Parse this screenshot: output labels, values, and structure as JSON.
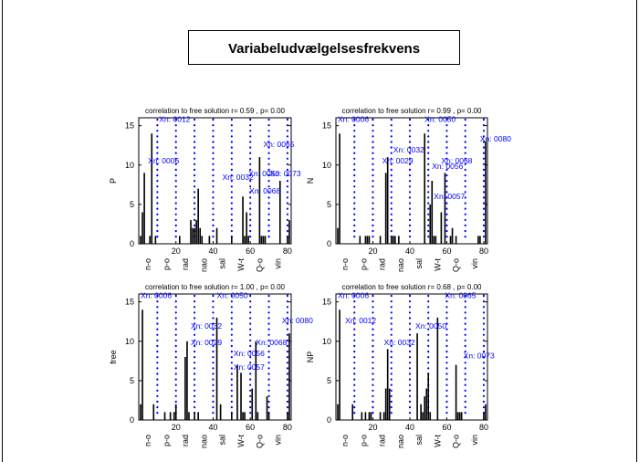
{
  "figure": {
    "title": "Variabeludvælgelsesfrekvens"
  },
  "chart_data": [
    {
      "type": "bar",
      "title": "correlation to free solution  r= 0.59 , p= 0.00",
      "ylabel": "P",
      "xlim": [
        0,
        82
      ],
      "ylim": [
        0,
        16
      ],
      "xticks": [
        20,
        40,
        60,
        80
      ],
      "yticks": [
        0,
        5,
        10,
        15
      ],
      "group_labels": [
        "n-o",
        "p-o",
        "rad",
        "nao",
        "sal",
        "W-t",
        "Q-o",
        "vin"
      ],
      "separators": [
        10,
        20,
        30,
        40,
        50,
        60,
        70,
        80
      ],
      "x": [
        1,
        2,
        3,
        4,
        5,
        6,
        7,
        8,
        9,
        10,
        11,
        12,
        13,
        14,
        15,
        16,
        17,
        18,
        19,
        20,
        21,
        22,
        23,
        24,
        25,
        26,
        27,
        28,
        29,
        30,
        31,
        32,
        33,
        34,
        35,
        36,
        37,
        38,
        39,
        40,
        41,
        42,
        43,
        44,
        45,
        46,
        47,
        48,
        49,
        50,
        51,
        52,
        53,
        54,
        55,
        56,
        57,
        58,
        59,
        60,
        61,
        62,
        63,
        64,
        65,
        66,
        67,
        68,
        69,
        70,
        71,
        72,
        73,
        74,
        75,
        76,
        77,
        78,
        79,
        80,
        81
      ],
      "values": [
        1,
        4,
        9,
        0,
        0,
        1,
        14,
        0,
        1,
        0,
        0,
        0,
        0,
        0,
        0,
        0,
        0,
        0,
        0,
        0,
        0,
        1,
        0,
        0,
        0,
        0,
        0,
        3,
        2,
        2,
        3,
        7,
        2,
        1,
        0,
        0,
        0,
        1,
        0,
        0,
        0,
        2,
        0,
        0,
        0,
        0,
        0,
        0,
        0,
        1,
        0,
        0,
        0,
        0,
        0,
        6,
        1,
        4,
        1,
        0,
        0,
        0,
        0,
        0,
        11,
        1,
        1,
        1,
        0,
        0,
        0,
        0,
        0,
        0,
        0,
        8,
        0,
        0,
        0,
        1,
        3
      ],
      "annotations": [
        {
          "label": "Xn: 0012",
          "x": 11,
          "y": 15.5
        },
        {
          "label": "Xn: 0006",
          "x": 5,
          "y": 10.2
        },
        {
          "label": "Xn: 0032",
          "x": 45,
          "y": 8.1
        },
        {
          "label": "Xn: 0050",
          "x": 59,
          "y": 8.6
        },
        {
          "label": "Xn: 0073",
          "x": 70.5,
          "y": 8.6
        },
        {
          "label": "Xn: 0065",
          "x": 67,
          "y": 12.3
        },
        {
          "label": "Xn: 0068",
          "x": 59.5,
          "y": 6.4
        }
      ]
    },
    {
      "type": "bar",
      "title": "correlation to free solution  r= 0.99 , p= 0.00",
      "ylabel": "N",
      "xlim": [
        0,
        82
      ],
      "ylim": [
        0,
        16
      ],
      "xticks": [
        20,
        40,
        60,
        80
      ],
      "yticks": [
        0,
        5,
        10,
        15
      ],
      "group_labels": [
        "n-o",
        "p-o",
        "rad",
        "nao",
        "sal",
        "W-t",
        "Q-o",
        "vin"
      ],
      "separators": [
        10,
        20,
        30,
        40,
        50,
        60,
        70,
        80
      ],
      "x": [
        1,
        2,
        3,
        4,
        5,
        6,
        7,
        8,
        9,
        10,
        11,
        12,
        13,
        14,
        15,
        16,
        17,
        18,
        19,
        20,
        21,
        22,
        23,
        24,
        25,
        26,
        27,
        28,
        29,
        30,
        31,
        32,
        33,
        34,
        35,
        36,
        37,
        38,
        39,
        40,
        41,
        42,
        43,
        44,
        45,
        46,
        47,
        48,
        49,
        50,
        51,
        52,
        53,
        54,
        55,
        56,
        57,
        58,
        59,
        60,
        61,
        62,
        63,
        64,
        65,
        66,
        67,
        68,
        69,
        70,
        71,
        72,
        73,
        74,
        75,
        76,
        77,
        78,
        79,
        80,
        81
      ],
      "values": [
        2,
        14,
        0,
        0,
        0,
        0,
        0,
        0,
        0,
        0,
        0,
        0,
        1,
        0,
        0,
        1,
        1,
        1,
        0,
        0,
        0,
        0,
        0,
        1,
        0,
        0,
        9,
        11,
        0,
        1,
        1,
        1,
        0,
        1,
        0,
        0,
        0,
        0,
        0,
        0,
        0,
        0,
        0,
        0,
        0,
        0,
        0,
        14,
        0,
        0,
        5,
        8,
        1,
        1,
        0,
        0,
        4,
        0,
        9,
        0,
        0,
        1,
        2,
        0,
        1,
        0,
        0,
        0,
        0,
        0,
        0,
        0,
        0,
        0,
        0,
        0,
        1,
        1,
        0,
        0,
        13
      ],
      "annotations": [
        {
          "label": "Xn: 0006",
          "x": 1,
          "y": 15.5
        },
        {
          "label": "Xn: 0050",
          "x": 48,
          "y": 15.5
        },
        {
          "label": "Xn: 0080",
          "x": 78,
          "y": 13
        },
        {
          "label": "Xn: 0029",
          "x": 25,
          "y": 10.2
        },
        {
          "label": "Xn: 0032",
          "x": 31,
          "y": 11.6
        },
        {
          "label": "Xn: 0056",
          "x": 52,
          "y": 9.5
        },
        {
          "label": "Xn: 0068",
          "x": 57,
          "y": 10.2
        },
        {
          "label": "Xn: 0057",
          "x": 53,
          "y": 5.7
        }
      ]
    },
    {
      "type": "bar",
      "title": "correlation to free solution  r= 1.00 , p= 0.00",
      "ylabel": "free",
      "xlim": [
        0,
        82
      ],
      "ylim": [
        0,
        16
      ],
      "xticks": [
        20,
        40,
        60,
        80
      ],
      "yticks": [
        0,
        5,
        10,
        15
      ],
      "group_labels": [
        "n-o",
        "p-o",
        "rad",
        "nao",
        "sal",
        "W-t",
        "Q-o",
        "vin"
      ],
      "separators": [
        10,
        20,
        30,
        40,
        50,
        60,
        70,
        80
      ],
      "x": [
        1,
        2,
        3,
        4,
        5,
        6,
        7,
        8,
        9,
        10,
        11,
        12,
        13,
        14,
        15,
        16,
        17,
        18,
        19,
        20,
        21,
        22,
        23,
        24,
        25,
        26,
        27,
        28,
        29,
        30,
        31,
        32,
        33,
        34,
        35,
        36,
        37,
        38,
        39,
        40,
        41,
        42,
        43,
        44,
        45,
        46,
        47,
        48,
        49,
        50,
        51,
        52,
        53,
        54,
        55,
        56,
        57,
        58,
        59,
        60,
        61,
        62,
        63,
        64,
        65,
        66,
        67,
        68,
        69,
        70,
        71,
        72,
        73,
        74,
        75,
        76,
        77,
        78,
        79,
        80,
        81
      ],
      "values": [
        2,
        14,
        0,
        0,
        0,
        0,
        0,
        2,
        0,
        0,
        0,
        0,
        0,
        1,
        0,
        0,
        1,
        0,
        1,
        2,
        0,
        0,
        0,
        0,
        8,
        10,
        1,
        0,
        0,
        1,
        0,
        1,
        0,
        0,
        0,
        0,
        0,
        0,
        0,
        0,
        0,
        13,
        0,
        2,
        0,
        0,
        0,
        0,
        0,
        1,
        0,
        0,
        7,
        0,
        6,
        1,
        1,
        0,
        0,
        0,
        4,
        0,
        10,
        1,
        0,
        0,
        0,
        0,
        3,
        1,
        0,
        0,
        0,
        0,
        0,
        0,
        0,
        0,
        0,
        1,
        11
      ],
      "annotations": [
        {
          "label": "Xn: 0006",
          "x": 1,
          "y": 15.5
        },
        {
          "label": "Xn: 0050",
          "x": 42,
          "y": 15.5
        },
        {
          "label": "Xn: 0080",
          "x": 77,
          "y": 12.3
        },
        {
          "label": "Xn: 0032",
          "x": 28,
          "y": 11.6
        },
        {
          "label": "Xn: 0029",
          "x": 28,
          "y": 9.5
        },
        {
          "label": "Xn: 0068",
          "x": 63,
          "y": 9.5
        },
        {
          "label": "Xn: 0056",
          "x": 51,
          "y": 8.1
        },
        {
          "label": "Xn: 0057",
          "x": 51,
          "y": 6.4
        }
      ]
    },
    {
      "type": "bar",
      "title": "correlation to free solution  r= 0.68 , p= 0.00",
      "ylabel": "NP",
      "xlim": [
        0,
        82
      ],
      "ylim": [
        0,
        16
      ],
      "xticks": [
        20,
        40,
        60,
        80
      ],
      "yticks": [
        0,
        5,
        10,
        15
      ],
      "group_labels": [
        "n-o",
        "p-o",
        "rad",
        "nao",
        "sal",
        "W-t",
        "Q-o",
        "vin"
      ],
      "separators": [
        10,
        20,
        30,
        40,
        50,
        60,
        70,
        80
      ],
      "x": [
        1,
        2,
        3,
        4,
        5,
        6,
        7,
        8,
        9,
        10,
        11,
        12,
        13,
        14,
        15,
        16,
        17,
        18,
        19,
        20,
        21,
        22,
        23,
        24,
        25,
        26,
        27,
        28,
        29,
        30,
        31,
        32,
        33,
        34,
        35,
        36,
        37,
        38,
        39,
        40,
        41,
        42,
        43,
        44,
        45,
        46,
        47,
        48,
        49,
        50,
        51,
        52,
        53,
        54,
        55,
        56,
        57,
        58,
        59,
        60,
        61,
        62,
        63,
        64,
        65,
        66,
        67,
        68,
        69,
        70,
        71,
        72,
        73,
        74,
        75,
        76,
        77,
        78,
        79,
        80,
        81
      ],
      "values": [
        2,
        14,
        0,
        0,
        0,
        0,
        0,
        0,
        2,
        0,
        0,
        0,
        0,
        1,
        0,
        1,
        0,
        1,
        1,
        0,
        0,
        0,
        0,
        1,
        0,
        1,
        4,
        9,
        4,
        0,
        0,
        0,
        0,
        0,
        0,
        0,
        0,
        0,
        0,
        0,
        0,
        0,
        0,
        11,
        0,
        2,
        1,
        3,
        4,
        6,
        1,
        0,
        0,
        0,
        13,
        0,
        0,
        0,
        0,
        0,
        0,
        0,
        0,
        0,
        7,
        1,
        1,
        1,
        0,
        0,
        0,
        0,
        0,
        0,
        0,
        0,
        0,
        0,
        0,
        1,
        2
      ],
      "annotations": [
        {
          "label": "Xn: 0006",
          "x": 1,
          "y": 15.5
        },
        {
          "label": "Xn: 0012",
          "x": 5,
          "y": 12.3
        },
        {
          "label": "Xn: 0050",
          "x": 43,
          "y": 11.6
        },
        {
          "label": "Xn: 0065",
          "x": 59,
          "y": 15.5
        },
        {
          "label": "Xn: 0032",
          "x": 26,
          "y": 9.5
        },
        {
          "label": "Xn: 0073",
          "x": 69,
          "y": 7.8
        }
      ]
    }
  ]
}
